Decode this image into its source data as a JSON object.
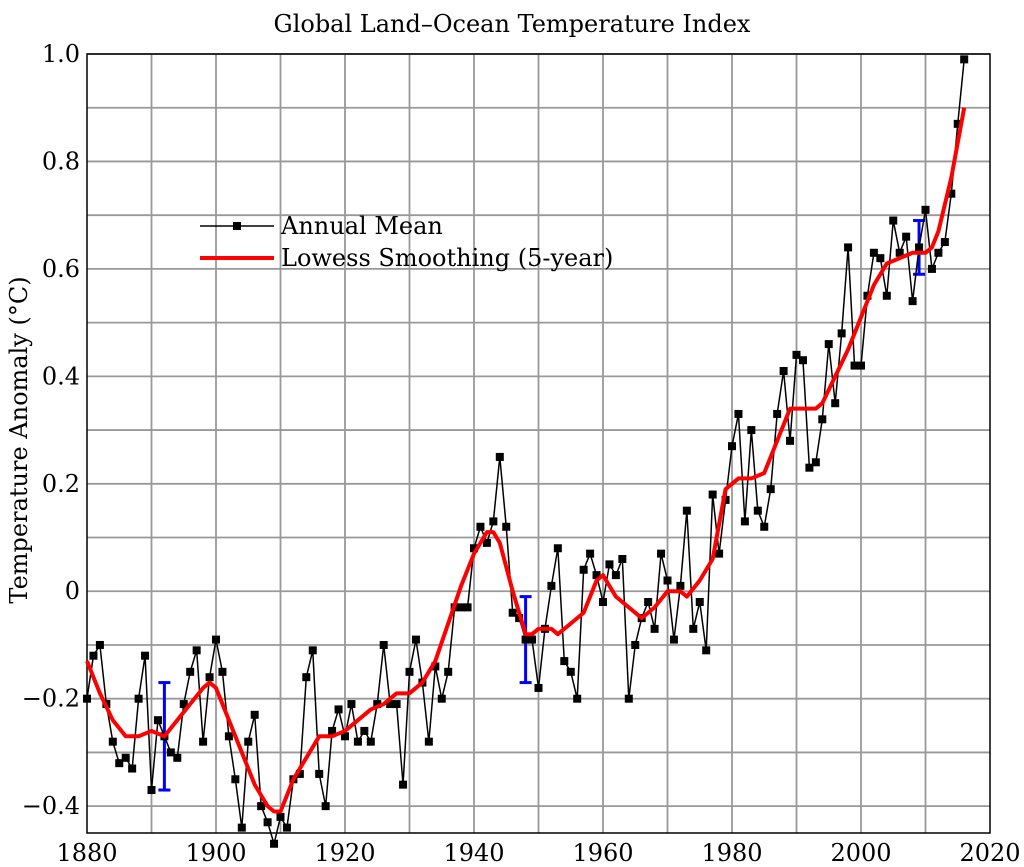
{
  "chart_data": {
    "type": "line",
    "title": "Global Land–Ocean Temperature Index",
    "xlabel": "",
    "ylabel": "Temperature Anomaly (°C)",
    "xlim": [
      1880,
      2020
    ],
    "ylim": [
      -0.45,
      1.0
    ],
    "xticks": [
      1880,
      1900,
      1920,
      1940,
      1960,
      1980,
      2000,
      2020
    ],
    "yticks": [
      -0.4,
      -0.2,
      0,
      0.2,
      0.4,
      0.6,
      0.8,
      1.0
    ],
    "ytick_labels": [
      "−0.4",
      "−0.2",
      "0",
      "0.2",
      "0.4",
      "0.6",
      "0.8",
      "1.0"
    ],
    "grid": true,
    "legend": "upper-left",
    "series": [
      {
        "name": "Annual Mean",
        "color": "#000000",
        "marker": "square",
        "x": [
          1880,
          1881,
          1882,
          1883,
          1884,
          1885,
          1886,
          1887,
          1888,
          1889,
          1890,
          1891,
          1892,
          1893,
          1894,
          1895,
          1896,
          1897,
          1898,
          1899,
          1900,
          1901,
          1902,
          1903,
          1904,
          1905,
          1906,
          1907,
          1908,
          1909,
          1910,
          1911,
          1912,
          1913,
          1914,
          1915,
          1916,
          1917,
          1918,
          1919,
          1920,
          1921,
          1922,
          1923,
          1924,
          1925,
          1926,
          1927,
          1928,
          1929,
          1930,
          1931,
          1932,
          1933,
          1934,
          1935,
          1936,
          1937,
          1938,
          1939,
          1940,
          1941,
          1942,
          1943,
          1944,
          1945,
          1946,
          1947,
          1948,
          1949,
          1950,
          1951,
          1952,
          1953,
          1954,
          1955,
          1956,
          1957,
          1958,
          1959,
          1960,
          1961,
          1962,
          1963,
          1964,
          1965,
          1966,
          1967,
          1968,
          1969,
          1970,
          1971,
          1972,
          1973,
          1974,
          1975,
          1976,
          1977,
          1978,
          1979,
          1980,
          1981,
          1982,
          1983,
          1984,
          1985,
          1986,
          1987,
          1988,
          1989,
          1990,
          1991,
          1992,
          1993,
          1994,
          1995,
          1996,
          1997,
          1998,
          1999,
          2000,
          2001,
          2002,
          2003,
          2004,
          2005,
          2006,
          2007,
          2008,
          2009,
          2010,
          2011,
          2012,
          2013,
          2014,
          2015,
          2016
        ],
        "y": [
          -0.2,
          -0.12,
          -0.1,
          -0.21,
          -0.28,
          -0.32,
          -0.31,
          -0.33,
          -0.2,
          -0.12,
          -0.37,
          -0.24,
          -0.27,
          -0.3,
          -0.31,
          -0.21,
          -0.15,
          -0.11,
          -0.28,
          -0.16,
          -0.09,
          -0.15,
          -0.27,
          -0.35,
          -0.44,
          -0.28,
          -0.23,
          -0.4,
          -0.43,
          -0.47,
          -0.42,
          -0.44,
          -0.35,
          -0.34,
          -0.16,
          -0.11,
          -0.34,
          -0.4,
          -0.26,
          -0.22,
          -0.27,
          -0.21,
          -0.28,
          -0.26,
          -0.28,
          -0.21,
          -0.1,
          -0.21,
          -0.21,
          -0.36,
          -0.15,
          -0.09,
          -0.17,
          -0.28,
          -0.14,
          -0.2,
          -0.15,
          -0.03,
          -0.03,
          -0.03,
          0.08,
          0.12,
          0.09,
          0.13,
          0.25,
          0.12,
          -0.04,
          -0.05,
          -0.09,
          -0.09,
          -0.18,
          -0.07,
          0.01,
          0.08,
          -0.13,
          -0.15,
          -0.2,
          0.04,
          0.07,
          0.03,
          -0.02,
          0.05,
          0.03,
          0.06,
          -0.2,
          -0.1,
          -0.05,
          -0.02,
          -0.07,
          0.07,
          0.02,
          -0.09,
          0.01,
          0.15,
          -0.07,
          -0.02,
          -0.11,
          0.18,
          0.07,
          0.17,
          0.27,
          0.33,
          0.13,
          0.3,
          0.15,
          0.12,
          0.19,
          0.33,
          0.41,
          0.28,
          0.44,
          0.43,
          0.23,
          0.24,
          0.32,
          0.46,
          0.35,
          0.48,
          0.64,
          0.42,
          0.42,
          0.55,
          0.63,
          0.62,
          0.55,
          0.69,
          0.63,
          0.66,
          0.54,
          0.64,
          0.71,
          0.6,
          0.63,
          0.65,
          0.74,
          0.87,
          0.99
        ]
      },
      {
        "name": "Lowess Smoothing (5-year)",
        "color": "#ff0000",
        "x": [
          1880,
          1882,
          1884,
          1886,
          1888,
          1890,
          1892,
          1894,
          1896,
          1898,
          1899,
          1900,
          1902,
          1904,
          1906,
          1908,
          1909,
          1910,
          1912,
          1914,
          1916,
          1918,
          1920,
          1922,
          1924,
          1926,
          1928,
          1930,
          1932,
          1934,
          1936,
          1938,
          1940,
          1942,
          1943,
          1944,
          1946,
          1948,
          1949,
          1950,
          1952,
          1953,
          1955,
          1957,
          1959,
          1960,
          1962,
          1964,
          1966,
          1968,
          1970,
          1972,
          1973,
          1975,
          1977,
          1979,
          1981,
          1983,
          1985,
          1987,
          1989,
          1991,
          1993,
          1994,
          1996,
          1998,
          2000,
          2002,
          2004,
          2006,
          2008,
          2010,
          2011,
          2012,
          2014,
          2016
        ],
        "y": [
          -0.13,
          -0.19,
          -0.24,
          -0.27,
          -0.27,
          -0.26,
          -0.27,
          -0.24,
          -0.21,
          -0.18,
          -0.17,
          -0.18,
          -0.24,
          -0.3,
          -0.36,
          -0.4,
          -0.41,
          -0.41,
          -0.35,
          -0.31,
          -0.27,
          -0.27,
          -0.26,
          -0.24,
          -0.22,
          -0.21,
          -0.19,
          -0.19,
          -0.17,
          -0.13,
          -0.06,
          0.01,
          0.07,
          0.11,
          0.11,
          0.09,
          0.0,
          -0.08,
          -0.08,
          -0.07,
          -0.07,
          -0.08,
          -0.06,
          -0.04,
          0.02,
          0.03,
          -0.01,
          -0.03,
          -0.05,
          -0.03,
          0.0,
          0.0,
          -0.01,
          0.02,
          0.06,
          0.19,
          0.21,
          0.21,
          0.22,
          0.28,
          0.34,
          0.34,
          0.34,
          0.35,
          0.4,
          0.45,
          0.51,
          0.57,
          0.61,
          0.62,
          0.63,
          0.63,
          0.64,
          0.67,
          0.77,
          0.9
        ]
      }
    ],
    "error_bars": {
      "color": "#0000ff",
      "items": [
        {
          "x": 1892,
          "low": -0.37,
          "high": -0.17
        },
        {
          "x": 1948,
          "low": -0.17,
          "high": -0.01
        },
        {
          "x": 2009,
          "low": 0.59,
          "high": 0.69
        }
      ]
    }
  }
}
